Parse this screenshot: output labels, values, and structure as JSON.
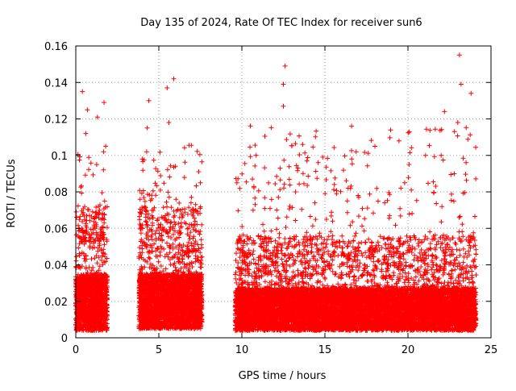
{
  "chart_data": {
    "type": "scatter",
    "title": "Day 135 of 2024, Rate Of TEC Index for receiver sun6",
    "xlabel": "GPS time / hours",
    "ylabel": "ROTI / TECUs",
    "xlim": [
      0,
      25
    ],
    "ylim": [
      0,
      0.16
    ],
    "x_ticks": [
      "0",
      "5",
      "10",
      "15",
      "20",
      "25"
    ],
    "y_ticks": [
      "0",
      "0.02",
      "0.04",
      "0.06",
      "0.08",
      "0.1",
      "0.12",
      "0.14",
      "0.16"
    ],
    "grid": true,
    "marker": "+",
    "point_color": "#ff0000",
    "series": [
      {
        "segments": [
          {
            "x_start": 0.0,
            "x_end": 1.9,
            "base_min": 0.004,
            "base_max": 0.045,
            "spike_max": 0.136
          },
          {
            "x_start": 3.8,
            "x_end": 7.6,
            "base_min": 0.005,
            "base_max": 0.045,
            "spike_max": 0.143
          },
          {
            "x_start": 9.6,
            "x_end": 24.1,
            "base_min": 0.004,
            "base_max": 0.035,
            "spike_max": 0.155
          }
        ],
        "notable_points": [
          {
            "x": 23.1,
            "y": 0.155
          },
          {
            "x": 12.6,
            "y": 0.149
          },
          {
            "x": 5.9,
            "y": 0.142
          },
          {
            "x": 12.5,
            "y": 0.139
          },
          {
            "x": 23.2,
            "y": 0.139
          },
          {
            "x": 0.4,
            "y": 0.135
          },
          {
            "x": 5.5,
            "y": 0.137
          },
          {
            "x": 23.8,
            "y": 0.134
          },
          {
            "x": 4.4,
            "y": 0.13
          },
          {
            "x": 12.5,
            "y": 0.127
          },
          {
            "x": 1.7,
            "y": 0.129
          },
          {
            "x": 22.2,
            "y": 0.124
          },
          {
            "x": 0.7,
            "y": 0.125
          },
          {
            "x": 1.3,
            "y": 0.121
          },
          {
            "x": 4.3,
            "y": 0.115
          },
          {
            "x": 5.6,
            "y": 0.118
          },
          {
            "x": 23.0,
            "y": 0.118
          },
          {
            "x": 22.8,
            "y": 0.113
          },
          {
            "x": 1.8,
            "y": 0.105
          },
          {
            "x": 0.6,
            "y": 0.112
          },
          {
            "x": 4.0,
            "y": 0.098
          },
          {
            "x": 6.0,
            "y": 0.094
          },
          {
            "x": 22.0,
            "y": 0.1
          },
          {
            "x": 23.5,
            "y": 0.096
          },
          {
            "x": 12.3,
            "y": 0.093
          },
          {
            "x": 9.7,
            "y": 0.085
          },
          {
            "x": 7.5,
            "y": 0.085
          },
          {
            "x": 16.4,
            "y": 0.082
          },
          {
            "x": 19.8,
            "y": 0.085
          },
          {
            "x": 17.0,
            "y": 0.078
          },
          {
            "x": 20.2,
            "y": 0.081
          },
          {
            "x": 12.2,
            "y": 0.077
          },
          {
            "x": 15.7,
            "y": 0.079
          },
          {
            "x": 10.8,
            "y": 0.073
          },
          {
            "x": 18.6,
            "y": 0.074
          }
        ]
      }
    ]
  }
}
